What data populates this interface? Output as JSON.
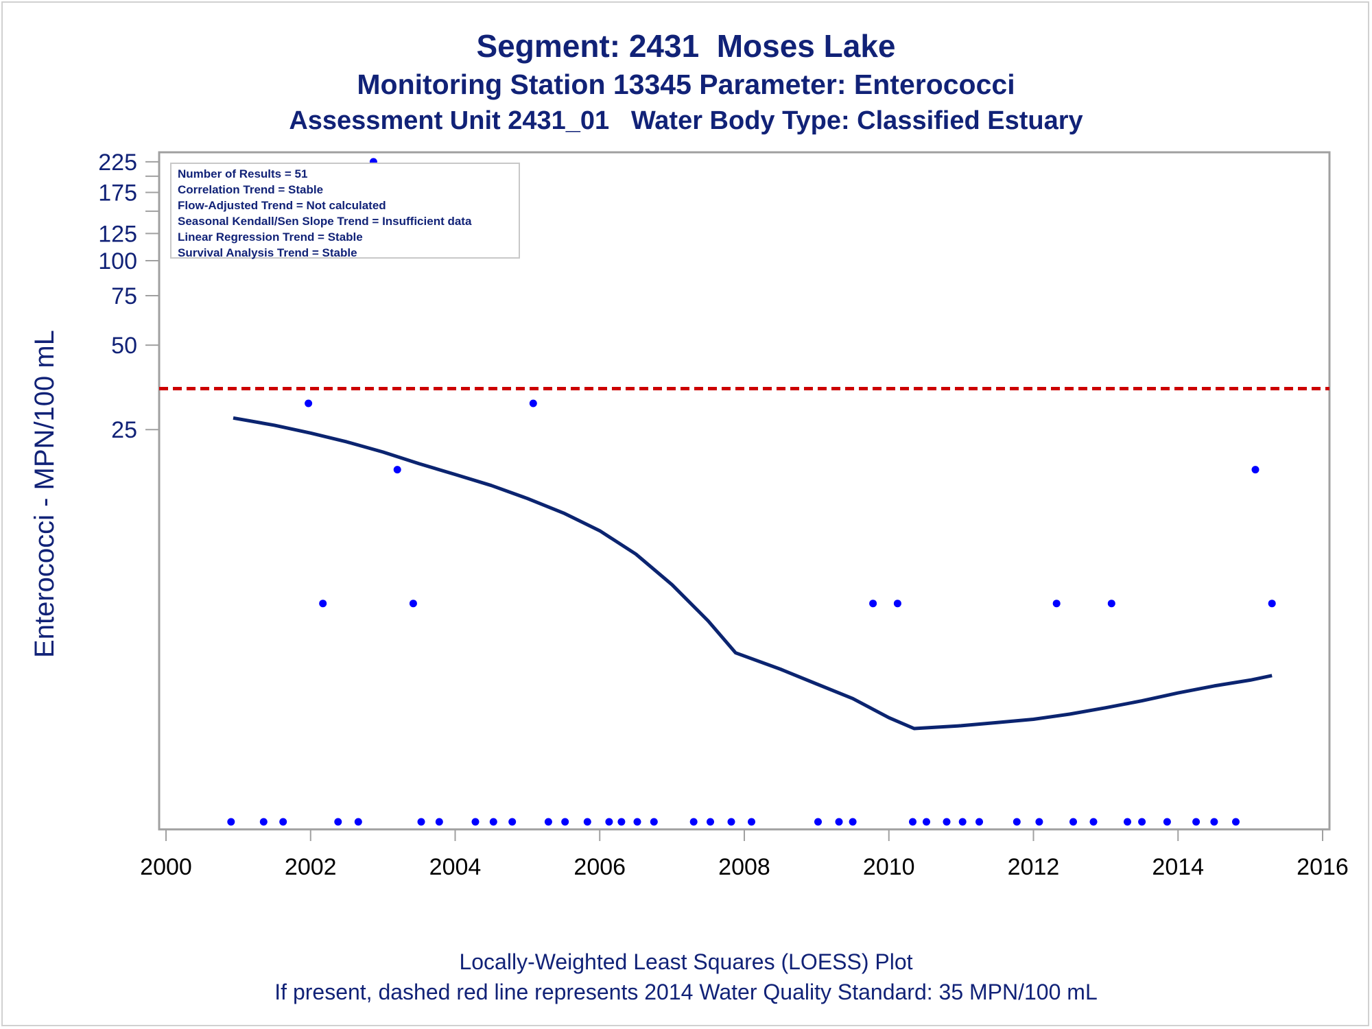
{
  "titles": {
    "line1": "Segment: 2431  Moses Lake",
    "line2": "Monitoring Station 13345 Parameter: Enterococci",
    "line3": "Assessment Unit 2431_01   Water Body Type: Classified Estuary"
  },
  "footnotes": {
    "line1": "Locally-Weighted Least Squares (LOESS) Plot",
    "line2": "If present, dashed red line represents 2014 Water Quality Standard: 35 MPN/100 mL"
  },
  "info_box": [
    "Number of Results = 51",
    "Correlation Trend = Stable",
    "Flow-Adjusted Trend = Not calculated",
    "Seasonal Kendall/Sen Slope Trend = Insufficient data",
    "Linear Regression Trend = Stable",
    "Survival Analysis Trend = Stable"
  ],
  "colors": {
    "text": "#112277",
    "points": "#0000ff",
    "loess": "#0b2470",
    "standard": "#cc0000",
    "axis": "#a0a0a0"
  },
  "chart_data": {
    "type": "scatter",
    "ylabel": "Enterococci - MPN/100 mL",
    "xlabel": "",
    "y_scale": "log",
    "xlim": [
      2000,
      2016
    ],
    "ylim": [
      1,
      230
    ],
    "x_ticks": [
      2000,
      2002,
      2004,
      2006,
      2008,
      2010,
      2012,
      2014,
      2016
    ],
    "y_tick_labels": [
      25,
      50,
      75,
      100,
      125,
      175,
      225
    ],
    "y_minor_ticks": [
      150,
      200
    ],
    "grid": false,
    "standard_line": {
      "value": 35,
      "style": "dashed"
    },
    "points": [
      {
        "x": 2000.9,
        "y": 1
      },
      {
        "x": 2001.35,
        "y": 1
      },
      {
        "x": 2001.62,
        "y": 1
      },
      {
        "x": 2001.97,
        "y": 31
      },
      {
        "x": 2002.17,
        "y": 6
      },
      {
        "x": 2002.38,
        "y": 1
      },
      {
        "x": 2002.66,
        "y": 1
      },
      {
        "x": 2002.87,
        "y": 225
      },
      {
        "x": 2003.2,
        "y": 18
      },
      {
        "x": 2003.42,
        "y": 6
      },
      {
        "x": 2003.53,
        "y": 1
      },
      {
        "x": 2003.78,
        "y": 1
      },
      {
        "x": 2004.28,
        "y": 1
      },
      {
        "x": 2004.53,
        "y": 1
      },
      {
        "x": 2004.79,
        "y": 1
      },
      {
        "x": 2005.08,
        "y": 31
      },
      {
        "x": 2005.29,
        "y": 1
      },
      {
        "x": 2005.52,
        "y": 1
      },
      {
        "x": 2005.83,
        "y": 1
      },
      {
        "x": 2006.13,
        "y": 1
      },
      {
        "x": 2006.3,
        "y": 1
      },
      {
        "x": 2006.52,
        "y": 1
      },
      {
        "x": 2006.75,
        "y": 1
      },
      {
        "x": 2007.3,
        "y": 1
      },
      {
        "x": 2007.53,
        "y": 1
      },
      {
        "x": 2007.82,
        "y": 1
      },
      {
        "x": 2008.1,
        "y": 1
      },
      {
        "x": 2009.02,
        "y": 1
      },
      {
        "x": 2009.31,
        "y": 1
      },
      {
        "x": 2009.5,
        "y": 1
      },
      {
        "x": 2009.78,
        "y": 6
      },
      {
        "x": 2010.12,
        "y": 6
      },
      {
        "x": 2010.33,
        "y": 1
      },
      {
        "x": 2010.52,
        "y": 1
      },
      {
        "x": 2010.8,
        "y": 1
      },
      {
        "x": 2011.02,
        "y": 1
      },
      {
        "x": 2011.25,
        "y": 1
      },
      {
        "x": 2011.77,
        "y": 1
      },
      {
        "x": 2012.08,
        "y": 1
      },
      {
        "x": 2012.32,
        "y": 6
      },
      {
        "x": 2012.55,
        "y": 1
      },
      {
        "x": 2012.83,
        "y": 1
      },
      {
        "x": 2013.08,
        "y": 6
      },
      {
        "x": 2013.3,
        "y": 1
      },
      {
        "x": 2013.5,
        "y": 1
      },
      {
        "x": 2013.85,
        "y": 1
      },
      {
        "x": 2014.25,
        "y": 1
      },
      {
        "x": 2014.5,
        "y": 1
      },
      {
        "x": 2014.8,
        "y": 1
      },
      {
        "x": 2015.07,
        "y": 18
      },
      {
        "x": 2015.3,
        "y": 6
      }
    ],
    "loess": [
      {
        "x": 2000.93,
        "y": 27.5
      },
      {
        "x": 2001.5,
        "y": 25.9
      },
      {
        "x": 2002.0,
        "y": 24.3
      },
      {
        "x": 2002.5,
        "y": 22.6
      },
      {
        "x": 2003.0,
        "y": 20.8
      },
      {
        "x": 2003.5,
        "y": 18.9
      },
      {
        "x": 2004.0,
        "y": 17.3
      },
      {
        "x": 2004.5,
        "y": 15.8
      },
      {
        "x": 2005.0,
        "y": 14.2
      },
      {
        "x": 2005.5,
        "y": 12.6
      },
      {
        "x": 2006.0,
        "y": 10.9
      },
      {
        "x": 2006.5,
        "y": 9.0
      },
      {
        "x": 2007.0,
        "y": 7.0
      },
      {
        "x": 2007.5,
        "y": 5.2
      },
      {
        "x": 2007.88,
        "y": 4.0
      },
      {
        "x": 2008.5,
        "y": 3.5
      },
      {
        "x": 2009.0,
        "y": 3.1
      },
      {
        "x": 2009.5,
        "y": 2.75
      },
      {
        "x": 2010.0,
        "y": 2.35
      },
      {
        "x": 2010.35,
        "y": 2.15
      },
      {
        "x": 2011.0,
        "y": 2.2
      },
      {
        "x": 2011.5,
        "y": 2.26
      },
      {
        "x": 2012.0,
        "y": 2.32
      },
      {
        "x": 2012.5,
        "y": 2.42
      },
      {
        "x": 2013.0,
        "y": 2.55
      },
      {
        "x": 2013.5,
        "y": 2.7
      },
      {
        "x": 2014.0,
        "y": 2.88
      },
      {
        "x": 2014.5,
        "y": 3.05
      },
      {
        "x": 2015.0,
        "y": 3.2
      },
      {
        "x": 2015.3,
        "y": 3.32
      }
    ]
  }
}
